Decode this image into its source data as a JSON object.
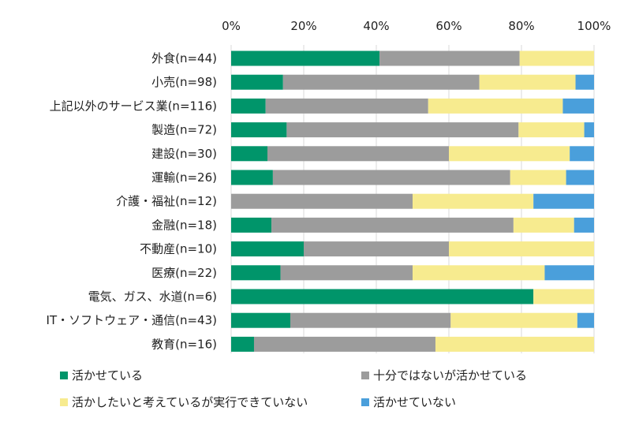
{
  "chart_data": {
    "type": "bar",
    "orientation": "horizontal-stacked-percent",
    "categories": [
      "外食(n=44)",
      "小売(n=98)",
      "上記以外のサービス業(n=116)",
      "製造(n=72)",
      "建設(n=30)",
      "運輸(n=26)",
      "介護・福祉(n=12)",
      "金融(n=18)",
      "不動産(n=10)",
      "医療(n=22)",
      "電気、ガス、水道(n=6)",
      "IT・ソフトウェア・通信(n=43)",
      "教育(n=16)"
    ],
    "series": [
      {
        "name": "活かせている",
        "color": "#00956a",
        "values": [
          40.9,
          14.3,
          9.5,
          15.3,
          10.0,
          11.5,
          0.0,
          11.1,
          20.0,
          13.6,
          83.3,
          16.3,
          6.3
        ]
      },
      {
        "name": "十分ではないが活かせている",
        "color": "#9c9c9c",
        "values": [
          38.6,
          54.1,
          44.8,
          63.9,
          50.0,
          65.4,
          50.0,
          66.7,
          40.0,
          36.4,
          0.0,
          44.2,
          50.0
        ]
      },
      {
        "name": "活かしたいと考えているが実行できていない",
        "color": "#f7eb8f",
        "values": [
          20.5,
          26.5,
          37.1,
          18.1,
          33.3,
          15.4,
          33.3,
          16.7,
          40.0,
          36.4,
          16.7,
          34.9,
          43.7
        ]
      },
      {
        "name": "活かせていない",
        "color": "#4a9fdb",
        "values": [
          0.0,
          5.1,
          8.6,
          2.7,
          6.7,
          7.7,
          16.7,
          5.5,
          0.0,
          13.6,
          0.0,
          4.6,
          0.0
        ]
      }
    ],
    "xticks": [
      "0%",
      "20%",
      "40%",
      "60%",
      "80%",
      "100%"
    ],
    "xlim": [
      0,
      100
    ],
    "grid": true,
    "legend": "bottom"
  }
}
